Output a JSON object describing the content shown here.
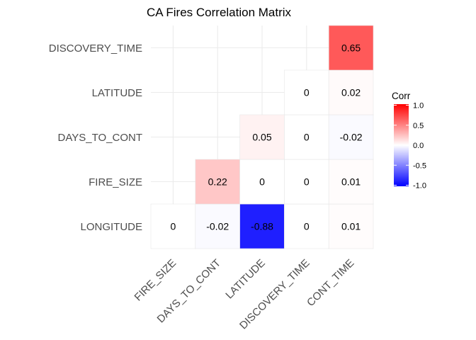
{
  "chart_data": {
    "type": "heatmap",
    "title": "CA Fires Correlation Matrix",
    "xlabel": "",
    "ylabel": "",
    "x_categories": [
      "FIRE_SIZE",
      "DAYS_TO_CONT",
      "LATITUDE",
      "DISCOVERY_TIME",
      "CONT_TIME"
    ],
    "y_categories": [
      "LONGITUDE",
      "FIRE_SIZE",
      "DAYS_TO_CONT",
      "LATITUDE",
      "DISCOVERY_TIME"
    ],
    "cells": [
      {
        "x": "FIRE_SIZE",
        "y": "LONGITUDE",
        "value": 0,
        "label": "0"
      },
      {
        "x": "DAYS_TO_CONT",
        "y": "LONGITUDE",
        "value": -0.02,
        "label": "-0.02"
      },
      {
        "x": "LATITUDE",
        "y": "LONGITUDE",
        "value": -0.88,
        "label": "-0.88"
      },
      {
        "x": "DISCOVERY_TIME",
        "y": "LONGITUDE",
        "value": 0,
        "label": "0"
      },
      {
        "x": "CONT_TIME",
        "y": "LONGITUDE",
        "value": 0.01,
        "label": "0.01"
      },
      {
        "x": "DAYS_TO_CONT",
        "y": "FIRE_SIZE",
        "value": 0.22,
        "label": "0.22"
      },
      {
        "x": "LATITUDE",
        "y": "FIRE_SIZE",
        "value": 0,
        "label": "0"
      },
      {
        "x": "DISCOVERY_TIME",
        "y": "FIRE_SIZE",
        "value": 0,
        "label": "0"
      },
      {
        "x": "CONT_TIME",
        "y": "FIRE_SIZE",
        "value": 0.01,
        "label": "0.01"
      },
      {
        "x": "LATITUDE",
        "y": "DAYS_TO_CONT",
        "value": 0.05,
        "label": "0.05"
      },
      {
        "x": "DISCOVERY_TIME",
        "y": "DAYS_TO_CONT",
        "value": 0,
        "label": "0"
      },
      {
        "x": "CONT_TIME",
        "y": "DAYS_TO_CONT",
        "value": -0.02,
        "label": "-0.02"
      },
      {
        "x": "DISCOVERY_TIME",
        "y": "LATITUDE",
        "value": 0,
        "label": "0"
      },
      {
        "x": "CONT_TIME",
        "y": "LATITUDE",
        "value": 0.02,
        "label": "0.02"
      },
      {
        "x": "CONT_TIME",
        "y": "DISCOVERY_TIME",
        "value": 0.65,
        "label": "0.65"
      }
    ],
    "value_range": [
      -1,
      1
    ],
    "grid": true,
    "legend": {
      "title": "Corr",
      "position": "right",
      "ticks": [
        "1.0",
        "0.5",
        "0.0",
        "-0.5",
        "-1.0"
      ],
      "tick_values": [
        1,
        0.5,
        0,
        -0.5,
        -1
      ]
    },
    "colors": {
      "low": "#0000ff",
      "mid": "#ffffff",
      "high": "#ff0000",
      "grid": "#ebebeb",
      "tile_border": "#e6e6e6"
    }
  }
}
